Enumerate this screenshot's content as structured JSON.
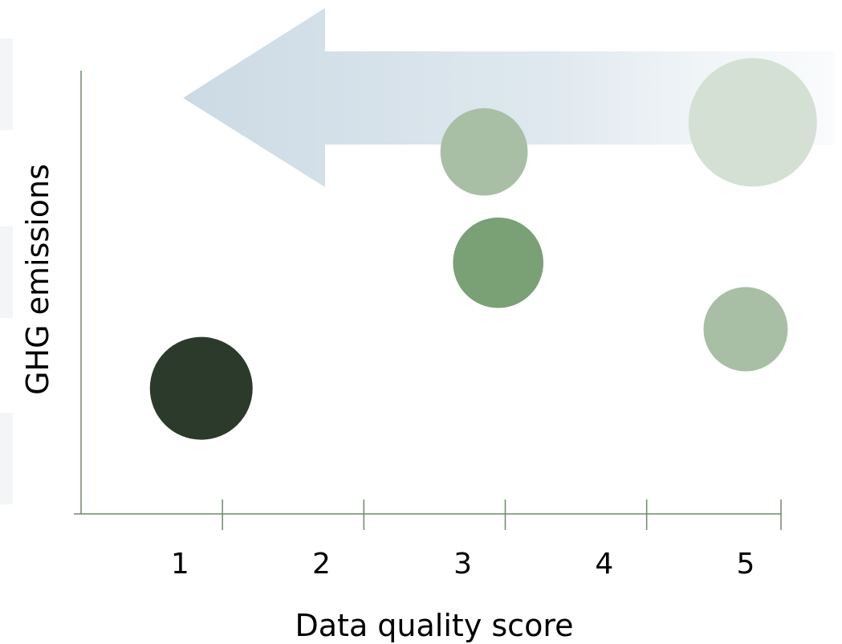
{
  "chart_data": {
    "type": "scatter",
    "title": "",
    "xlabel": "Data quality score",
    "ylabel": "GHG emissions",
    "x_tick_labels": [
      "1",
      "2",
      "3",
      "4",
      "5"
    ],
    "y_tick_labels": [],
    "grid": false,
    "legend": false,
    "annotations": [
      {
        "kind": "arrow",
        "direction": "left",
        "meaning": "improving data quality toward score 1"
      }
    ],
    "points": [
      {
        "x": 1.0,
        "y": 1.7,
        "size": 1.0,
        "color": "#2c3a2b"
      },
      {
        "x": 3.0,
        "y": 4.9,
        "size": 0.85,
        "color": "#a8bfa6"
      },
      {
        "x": 3.1,
        "y": 3.4,
        "size": 0.88,
        "color": "#7aa076"
      },
      {
        "x": 4.9,
        "y": 5.3,
        "size": 1.25,
        "color": "#d4e0d3"
      },
      {
        "x": 4.85,
        "y": 2.5,
        "size": 0.82,
        "color": "#a8bfa6"
      }
    ],
    "xlim": [
      0.15,
      5.1
    ],
    "ylim": [
      0.0,
      6.0
    ],
    "colors": {
      "axis": "#6d8a6b",
      "arrow": "#c9d8e3"
    }
  }
}
